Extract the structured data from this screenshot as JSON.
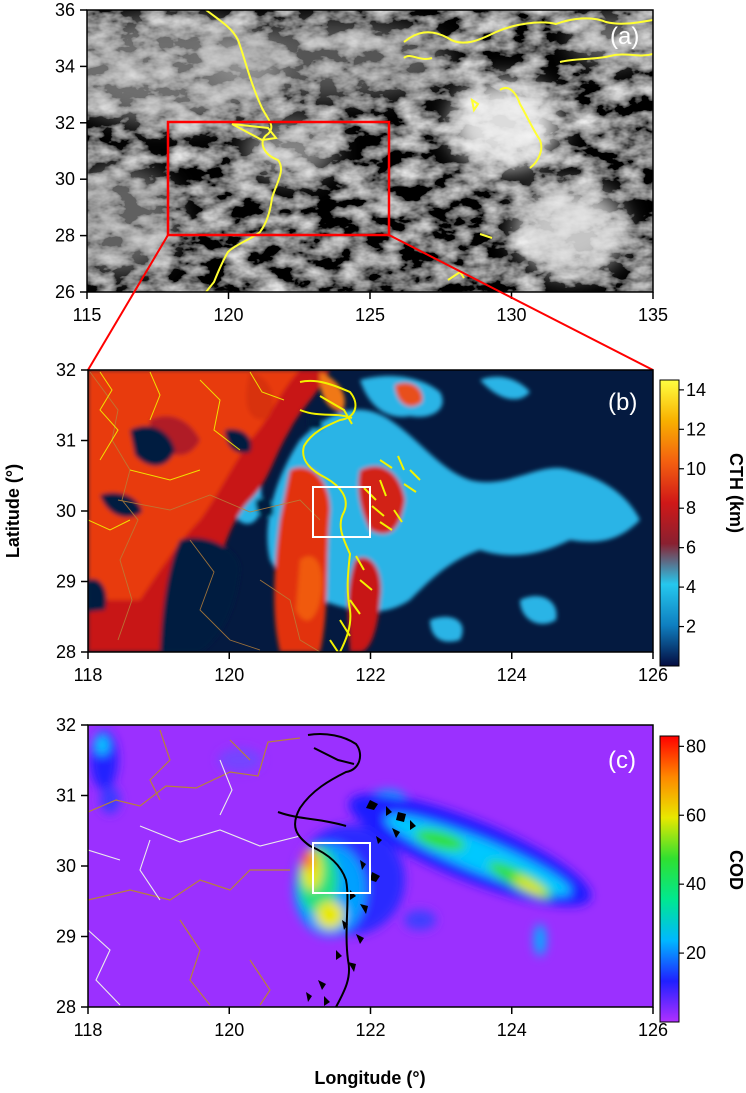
{
  "colors": {
    "coastline_a": "#ffff33",
    "coastline_b": "#f2f200",
    "coastline_c": "#000000",
    "province_border": "#b8803a",
    "county_border": "#e8e8e8",
    "zoom_box": "#ff0000",
    "target_box": "#ffffff",
    "cth_background": "#041a40",
    "cod_background": "#9b30ff"
  },
  "panels": [
    {
      "tag": "(a)",
      "content": "satellite visible image",
      "x_ticks": [
        "115",
        "120",
        "125",
        "130",
        "135"
      ],
      "y_ticks": [
        "26",
        "28",
        "30",
        "32",
        "34",
        "36"
      ],
      "lon_range": [
        115,
        135
      ],
      "lat_range": [
        26,
        36
      ],
      "zoom_box": {
        "lon": [
          118,
          126
        ],
        "lat": [
          28,
          32
        ]
      }
    },
    {
      "tag": "(b)",
      "content": "cloud top height map",
      "x_ticks": [
        "118",
        "120",
        "122",
        "124",
        "126"
      ],
      "y_ticks": [
        "28",
        "29",
        "30",
        "31",
        "32"
      ],
      "lon_range": [
        118,
        126
      ],
      "lat_range": [
        28,
        32
      ],
      "target_box": {
        "lon": [
          121.2,
          122
        ],
        "lat": [
          29.6,
          30.35
        ]
      },
      "ylabel": "Latitude (°)",
      "colorbar": {
        "label": "CTH (km)",
        "ticks": [
          "2",
          "4",
          "6",
          "8",
          "10",
          "12",
          "14"
        ],
        "range": [
          0,
          14.5
        ],
        "colormap": [
          "#040c40",
          "#0f7fc0",
          "#25c8ee",
          "#8a2030",
          "#d01818",
          "#f46010",
          "#f8b000",
          "#ffff40"
        ]
      }
    },
    {
      "tag": "(c)",
      "content": "cloud optical depth map",
      "x_ticks": [
        "118",
        "120",
        "122",
        "124",
        "126"
      ],
      "y_ticks": [
        "28",
        "29",
        "30",
        "31",
        "32"
      ],
      "lon_range": [
        118,
        126
      ],
      "lat_range": [
        28,
        32
      ],
      "target_box": {
        "lon": [
          121.2,
          122
        ],
        "lat": [
          29.6,
          30.35
        ]
      },
      "xlabel": "Longitude (°)",
      "colorbar": {
        "label": "COD",
        "ticks": [
          "20",
          "40",
          "60",
          "80"
        ],
        "range": [
          0,
          83
        ],
        "colormap": [
          "#b030ff",
          "#2020ff",
          "#00b8ff",
          "#00e890",
          "#30e030",
          "#e8e800",
          "#ff8800",
          "#ff0000"
        ]
      }
    }
  ]
}
